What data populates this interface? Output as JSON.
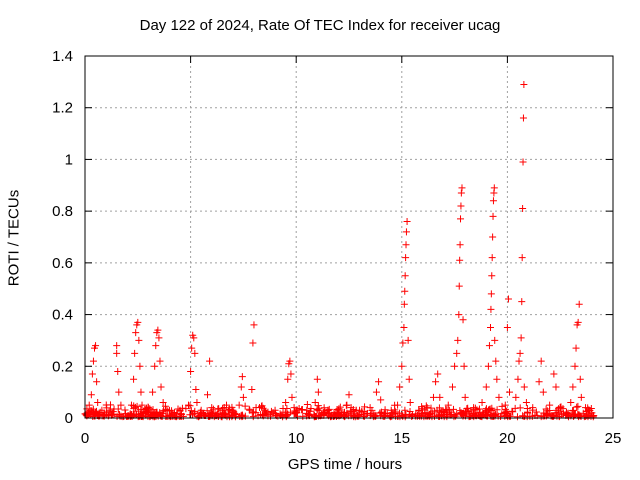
{
  "chart_data": {
    "type": "scatter",
    "title": "Day 122 of 2024, Rate Of TEC Index for receiver ucag",
    "xlabel": "GPS time / hours",
    "ylabel": "ROTI / TECUs",
    "xlim": [
      0,
      25
    ],
    "ylim": [
      0,
      1.4
    ],
    "xticks": [
      0,
      5,
      10,
      15,
      20,
      25
    ],
    "yticks": [
      0,
      0.2,
      0.4,
      0.6,
      0.8,
      1.0,
      1.2,
      1.4
    ],
    "xtick_labels": [
      "0",
      "5",
      "10",
      "15",
      "20",
      "25"
    ],
    "ytick_labels": [
      "0",
      "0.2",
      "0.4",
      "0.6",
      "0.8",
      "1",
      "1.2",
      "1.4"
    ],
    "grid": true,
    "marker": "+",
    "color": "#ff0000",
    "series": [
      {
        "name": "ROTI",
        "points": [
          [
            0.1,
            0.02
          ],
          [
            0.2,
            0.05
          ],
          [
            0.3,
            0.09
          ],
          [
            0.35,
            0.17
          ],
          [
            0.4,
            0.22
          ],
          [
            0.45,
            0.27
          ],
          [
            0.5,
            0.28
          ],
          [
            0.55,
            0.14
          ],
          [
            0.6,
            0.06
          ],
          [
            0.8,
            0.03
          ],
          [
            1.2,
            0.03
          ],
          [
            1.5,
            0.28
          ],
          [
            1.5,
            0.25
          ],
          [
            1.55,
            0.18
          ],
          [
            1.6,
            0.1
          ],
          [
            1.7,
            0.05
          ],
          [
            2.2,
            0.05
          ],
          [
            2.3,
            0.15
          ],
          [
            2.35,
            0.25
          ],
          [
            2.4,
            0.33
          ],
          [
            2.45,
            0.36
          ],
          [
            2.5,
            0.37
          ],
          [
            2.55,
            0.3
          ],
          [
            2.6,
            0.2
          ],
          [
            2.65,
            0.1
          ],
          [
            2.7,
            0.05
          ],
          [
            3.0,
            0.04
          ],
          [
            3.2,
            0.1
          ],
          [
            3.3,
            0.2
          ],
          [
            3.35,
            0.28
          ],
          [
            3.4,
            0.33
          ],
          [
            3.45,
            0.34
          ],
          [
            3.5,
            0.31
          ],
          [
            3.55,
            0.22
          ],
          [
            3.6,
            0.12
          ],
          [
            3.7,
            0.06
          ],
          [
            4.0,
            0.03
          ],
          [
            4.5,
            0.03
          ],
          [
            4.9,
            0.05
          ],
          [
            5.0,
            0.18
          ],
          [
            5.05,
            0.27
          ],
          [
            5.1,
            0.32
          ],
          [
            5.15,
            0.31
          ],
          [
            5.2,
            0.25
          ],
          [
            5.25,
            0.11
          ],
          [
            5.3,
            0.06
          ],
          [
            5.5,
            0.03
          ],
          [
            5.8,
            0.09
          ],
          [
            5.9,
            0.22
          ],
          [
            6.0,
            0.04
          ],
          [
            6.5,
            0.03
          ],
          [
            7.0,
            0.03
          ],
          [
            7.3,
            0.05
          ],
          [
            7.4,
            0.12
          ],
          [
            7.45,
            0.16
          ],
          [
            7.5,
            0.08
          ],
          [
            7.8,
            0.03
          ],
          [
            7.9,
            0.11
          ],
          [
            7.95,
            0.29
          ],
          [
            8.0,
            0.36
          ],
          [
            8.1,
            0.04
          ],
          [
            8.5,
            0.03
          ],
          [
            9.0,
            0.03
          ],
          [
            9.5,
            0.06
          ],
          [
            9.6,
            0.15
          ],
          [
            9.65,
            0.21
          ],
          [
            9.7,
            0.22
          ],
          [
            9.75,
            0.17
          ],
          [
            9.8,
            0.08
          ],
          [
            9.9,
            0.04
          ],
          [
            10.5,
            0.03
          ],
          [
            10.9,
            0.06
          ],
          [
            11.0,
            0.15
          ],
          [
            11.05,
            0.1
          ],
          [
            11.5,
            0.03
          ],
          [
            12.0,
            0.03
          ],
          [
            12.4,
            0.05
          ],
          [
            12.5,
            0.09
          ],
          [
            12.6,
            0.04
          ],
          [
            13.0,
            0.03
          ],
          [
            13.5,
            0.04
          ],
          [
            13.8,
            0.1
          ],
          [
            13.9,
            0.14
          ],
          [
            14.0,
            0.07
          ],
          [
            14.5,
            0.03
          ],
          [
            14.8,
            0.05
          ],
          [
            14.9,
            0.12
          ],
          [
            15.0,
            0.2
          ],
          [
            15.05,
            0.29
          ],
          [
            15.1,
            0.35
          ],
          [
            15.12,
            0.44
          ],
          [
            15.14,
            0.49
          ],
          [
            15.16,
            0.55
          ],
          [
            15.18,
            0.62
          ],
          [
            15.2,
            0.67
          ],
          [
            15.22,
            0.72
          ],
          [
            15.25,
            0.76
          ],
          [
            15.3,
            0.3
          ],
          [
            15.35,
            0.15
          ],
          [
            15.4,
            0.06
          ],
          [
            15.8,
            0.03
          ],
          [
            16.2,
            0.04
          ],
          [
            16.5,
            0.08
          ],
          [
            16.6,
            0.14
          ],
          [
            16.7,
            0.17
          ],
          [
            16.8,
            0.08
          ],
          [
            17.2,
            0.05
          ],
          [
            17.4,
            0.12
          ],
          [
            17.5,
            0.2
          ],
          [
            17.6,
            0.25
          ],
          [
            17.65,
            0.3
          ],
          [
            17.7,
            0.4
          ],
          [
            17.72,
            0.51
          ],
          [
            17.74,
            0.61
          ],
          [
            17.76,
            0.67
          ],
          [
            17.78,
            0.77
          ],
          [
            17.8,
            0.82
          ],
          [
            17.82,
            0.87
          ],
          [
            17.85,
            0.89
          ],
          [
            17.9,
            0.38
          ],
          [
            17.95,
            0.2
          ],
          [
            18.0,
            0.08
          ],
          [
            18.4,
            0.04
          ],
          [
            18.8,
            0.06
          ],
          [
            19.0,
            0.12
          ],
          [
            19.1,
            0.2
          ],
          [
            19.15,
            0.28
          ],
          [
            19.2,
            0.35
          ],
          [
            19.22,
            0.42
          ],
          [
            19.24,
            0.48
          ],
          [
            19.26,
            0.55
          ],
          [
            19.28,
            0.62
          ],
          [
            19.3,
            0.7
          ],
          [
            19.32,
            0.78
          ],
          [
            19.34,
            0.84
          ],
          [
            19.36,
            0.87
          ],
          [
            19.38,
            0.89
          ],
          [
            19.4,
            0.3
          ],
          [
            19.45,
            0.22
          ],
          [
            19.5,
            0.15
          ],
          [
            19.6,
            0.08
          ],
          [
            19.9,
            0.05
          ],
          [
            20.0,
            0.35
          ],
          [
            20.05,
            0.46
          ],
          [
            20.1,
            0.1
          ],
          [
            20.4,
            0.08
          ],
          [
            20.5,
            0.15
          ],
          [
            20.55,
            0.22
          ],
          [
            20.6,
            0.25
          ],
          [
            20.65,
            0.31
          ],
          [
            20.68,
            0.45
          ],
          [
            20.7,
            0.62
          ],
          [
            20.72,
            0.81
          ],
          [
            20.74,
            0.99
          ],
          [
            20.76,
            1.16
          ],
          [
            20.78,
            1.29
          ],
          [
            20.8,
            0.12
          ],
          [
            20.9,
            0.06
          ],
          [
            21.2,
            0.04
          ],
          [
            21.5,
            0.14
          ],
          [
            21.6,
            0.22
          ],
          [
            21.7,
            0.1
          ],
          [
            22.0,
            0.05
          ],
          [
            22.2,
            0.17
          ],
          [
            22.3,
            0.12
          ],
          [
            22.5,
            0.04
          ],
          [
            23.0,
            0.06
          ],
          [
            23.1,
            0.12
          ],
          [
            23.2,
            0.2
          ],
          [
            23.25,
            0.27
          ],
          [
            23.3,
            0.36
          ],
          [
            23.35,
            0.37
          ],
          [
            23.4,
            0.44
          ],
          [
            23.45,
            0.15
          ],
          [
            23.5,
            0.08
          ],
          [
            23.7,
            0.04
          ],
          [
            24.0,
            0.02
          ]
        ]
      }
    ]
  }
}
